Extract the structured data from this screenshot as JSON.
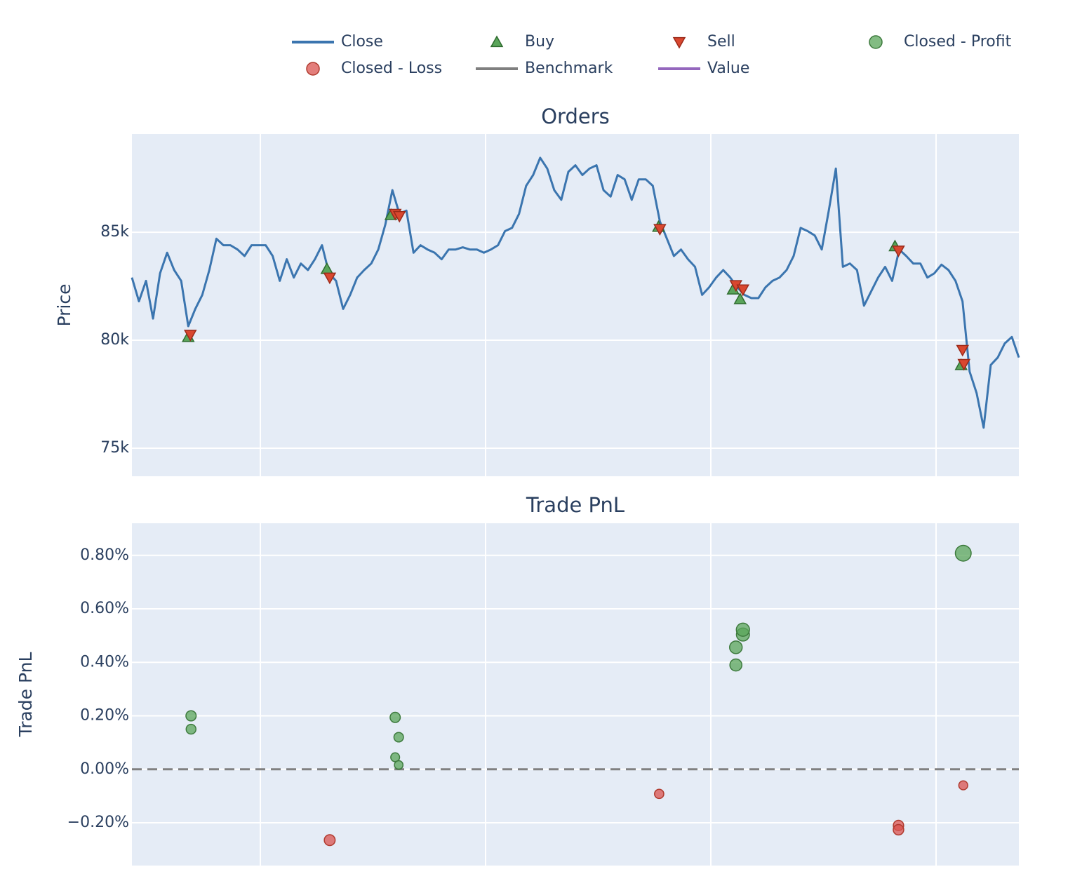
{
  "chart_data": [
    {
      "type": "line",
      "title": "Orders",
      "y_label": "Price",
      "xlim": [
        0,
        126
      ],
      "ylim": [
        73700,
        89550
      ],
      "yticks": [
        {
          "value": 75000,
          "label": "75k"
        },
        {
          "value": 80000,
          "label": "80k"
        },
        {
          "value": 85000,
          "label": "85k"
        }
      ],
      "grid": true,
      "series": [
        {
          "name": "Close",
          "color": "#3b75af",
          "symbol": "line",
          "values": [
            82900,
            81800,
            82750,
            81000,
            83100,
            84050,
            83250,
            82750,
            80650,
            81450,
            82100,
            83250,
            84700,
            84400,
            84400,
            84200,
            83900,
            84400,
            84400,
            84400,
            83900,
            82750,
            83750,
            82900,
            83550,
            83250,
            83750,
            84400,
            83100,
            82750,
            81450,
            82100,
            82900,
            83250,
            83550,
            84200,
            85350,
            86950,
            85850,
            86000,
            84050,
            84400,
            84200,
            84050,
            83750,
            84200,
            84200,
            84300,
            84200,
            84200,
            84050,
            84200,
            84400,
            85050,
            85200,
            85850,
            87150,
            87650,
            88450,
            87950,
            86950,
            86500,
            87800,
            88100,
            87650,
            87950,
            88100,
            86950,
            86650,
            87650,
            87450,
            86500,
            87450,
            87450,
            87150,
            85500,
            84700,
            83900,
            84200,
            83750,
            83400,
            82100,
            82450,
            82900,
            83250,
            82900,
            82450,
            82100,
            81950,
            81950,
            82450,
            82750,
            82900,
            83250,
            83900,
            85200,
            85050,
            84850,
            84200,
            86000,
            87950,
            83400,
            83550,
            83250,
            81600,
            82250,
            82900,
            83400,
            82750,
            84200,
            83900,
            83550,
            83550,
            82900,
            83100,
            83500,
            83250,
            82750,
            81800,
            78550,
            77550,
            75950,
            78850,
            79200,
            79850,
            80150,
            79200
          ]
        },
        {
          "name": "Buy",
          "color": "#5aa55a",
          "symbol": "triangle-up",
          "x": [
            8.0,
            27.7,
            36.8,
            74.8,
            85.4,
            86.4,
            108.4,
            117.8
          ],
          "values": [
            80150,
            83300,
            85800,
            85250,
            82350,
            81900,
            84350,
            78850
          ]
        },
        {
          "name": "Sell",
          "color": "#d9472f",
          "symbol": "triangle-down",
          "x": [
            8.3,
            28.1,
            37.4,
            38.0,
            75.0,
            85.8,
            86.8,
            108.9,
            118.0,
            118.2
          ],
          "values": [
            80250,
            82900,
            85850,
            85750,
            85150,
            82550,
            82350,
            84150,
            79550,
            78900
          ]
        }
      ]
    },
    {
      "type": "scatter",
      "title": "Trade PnL",
      "y_label": "Trade PnL",
      "xlim": [
        0,
        126
      ],
      "ylim": [
        -0.36,
        0.92
      ],
      "yticks": [
        {
          "value": -0.2,
          "label": "−0.20%"
        },
        {
          "value": 0,
          "label": "0.00%"
        },
        {
          "value": 0.2,
          "label": "0.20%"
        },
        {
          "value": 0.4,
          "label": "0.40%"
        },
        {
          "value": 0.6,
          "label": "0.60%"
        },
        {
          "value": 0.8,
          "label": "0.80%"
        }
      ],
      "grid": true,
      "zero_line": true,
      "series": [
        {
          "name": "Closed - Profit",
          "color": "#5aa55a",
          "symbol": "circle",
          "x": [
            8.4,
            8.4,
            37.4,
            37.9,
            37.4,
            37.9,
            85.8,
            85.8,
            86.8,
            86.8,
            118.1
          ],
          "values": [
            0.2,
            0.15,
            0.194,
            0.12,
            0.045,
            0.016,
            0.456,
            0.39,
            0.504,
            0.522,
            0.808
          ]
        },
        {
          "name": "Closed - Loss",
          "color": "#d9534f",
          "symbol": "circle",
          "x": [
            28.1,
            74.9,
            108.9,
            108.9,
            118.1
          ],
          "values": [
            -0.265,
            -0.092,
            -0.21,
            -0.226,
            -0.06
          ]
        },
        {
          "name": "Benchmark",
          "color": "#7f7f7f",
          "symbol": "line",
          "x": [],
          "values": []
        },
        {
          "name": "Value",
          "color": "#9467bd",
          "symbol": "line",
          "x": [],
          "values": []
        }
      ]
    }
  ]
}
